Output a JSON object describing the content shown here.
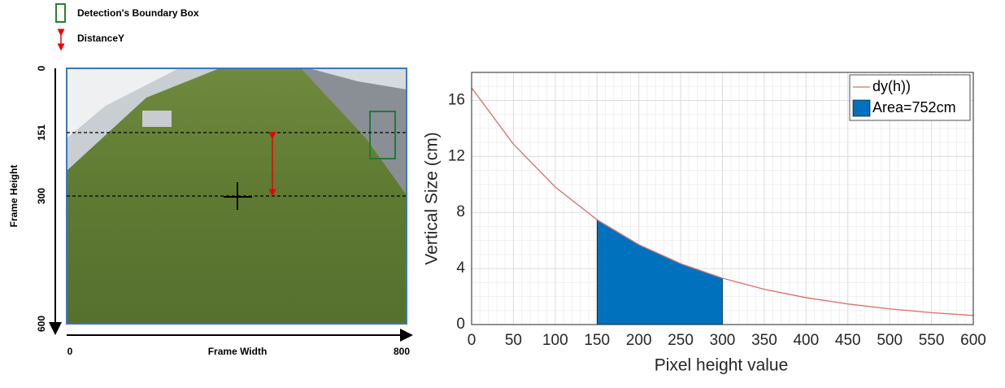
{
  "legend_items": [
    {
      "label": "Detection's Boundary Box"
    },
    {
      "label": "DistanceY"
    }
  ],
  "frame": {
    "xlabel": "Frame Width",
    "ylabel": "Frame Height",
    "xlim": [
      0,
      800
    ],
    "ylim": [
      0,
      600
    ],
    "xticks": [
      0,
      800
    ],
    "yticks": [
      0,
      151,
      300,
      600
    ]
  },
  "chart_data": {
    "type": "line",
    "xlabel": "Pixel height value",
    "ylabel": "Vertical Size (cm)",
    "x": [
      0,
      50,
      100,
      150,
      200,
      250,
      300,
      350,
      400,
      450,
      500,
      550,
      600
    ],
    "series": [
      {
        "name": "dy(h))",
        "color": "#d9706a",
        "kind": "line",
        "values": [
          16.9,
          12.88,
          9.82,
          7.48,
          5.7,
          4.35,
          3.31,
          2.52,
          1.92,
          1.47,
          1.12,
          0.85,
          0.65
        ]
      },
      {
        "name": "Area=752cm",
        "color": "#0072bd",
        "kind": "area",
        "values": [
          null,
          null,
          null,
          7.48,
          5.7,
          4.35,
          3.31,
          null,
          null,
          null,
          null,
          null,
          null
        ]
      }
    ],
    "xlim": [
      0,
      600
    ],
    "xticks": [
      0,
      50,
      100,
      150,
      200,
      250,
      300,
      350,
      400,
      450,
      500,
      550,
      600
    ],
    "ylim": [
      0,
      18
    ],
    "yticks": [
      0,
      4,
      8,
      12,
      16
    ],
    "grid": true,
    "minor_grid": true,
    "legend": "upper right"
  }
}
